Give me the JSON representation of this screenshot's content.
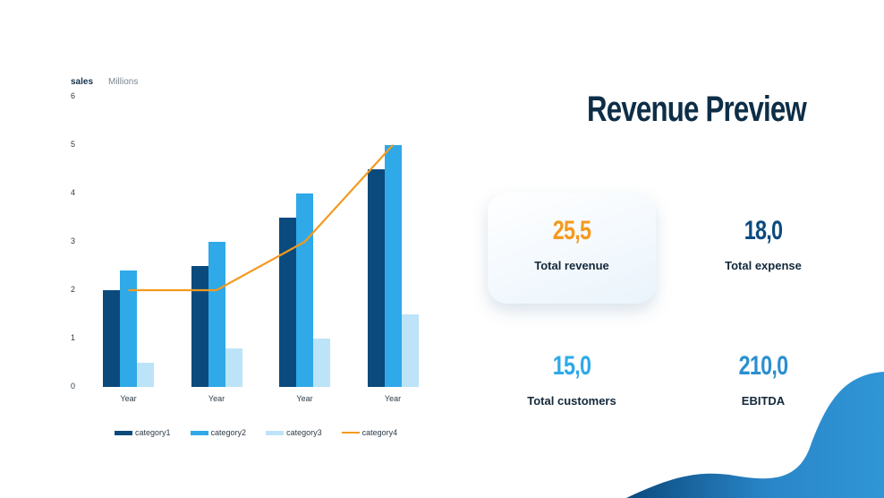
{
  "chart_data": {
    "type": "bar",
    "title": "",
    "ylabel": "sales",
    "yunit": "Millions",
    "xlabel": "",
    "categories": [
      "Year",
      "Year",
      "Year",
      "Year"
    ],
    "yticks": [
      "0",
      "1",
      "2",
      "3",
      "4",
      "5",
      "6"
    ],
    "ylim": [
      0,
      6
    ],
    "grid": false,
    "legend_position": "bottom",
    "series": [
      {
        "name": "category1",
        "type": "bar",
        "color": "#0b4a7d",
        "values": [
          2,
          2.5,
          3.5,
          4.5
        ]
      },
      {
        "name": "category2",
        "type": "bar",
        "color": "#2fa9e8",
        "values": [
          2.4,
          3,
          4,
          5
        ]
      },
      {
        "name": "category3",
        "type": "bar",
        "color": "#bde3f8",
        "values": [
          0.5,
          0.8,
          1,
          1.5
        ]
      },
      {
        "name": "category4",
        "type": "line",
        "color": "#f39a1e",
        "values": [
          2,
          2,
          3,
          5
        ]
      }
    ]
  },
  "chart": {
    "unit_sales": "sales",
    "unit_millions": "Millions"
  },
  "header": {
    "title": "Revenue Preview"
  },
  "kpis": [
    {
      "value": "25,5",
      "label": "Total revenue",
      "color": "#f39a1e"
    },
    {
      "value": "18,0",
      "label": "Total expense",
      "color": "#0d4a80"
    },
    {
      "value": "15,0",
      "label": "Total customers",
      "color": "#2fa9e8"
    },
    {
      "value": "210,0",
      "label": "EBITDA",
      "color": "#2b8fd0"
    }
  ],
  "colors": {
    "title": "#0e2e47",
    "wave_start": "#0b4a7d",
    "wave_end": "#2f96d6"
  }
}
